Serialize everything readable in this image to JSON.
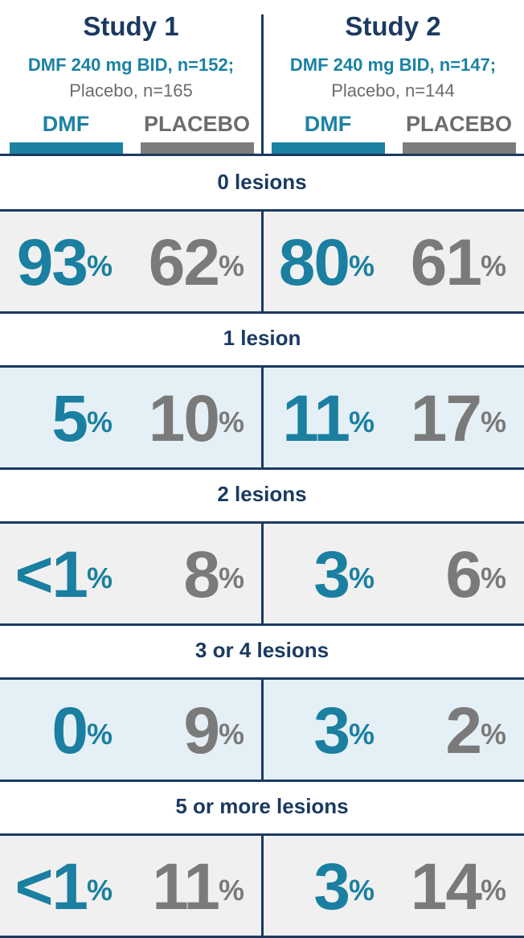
{
  "studies": [
    {
      "title": "Study 1",
      "dose": "DMF 240 mg BID, n=152;",
      "placebo": "Placebo, n=165"
    },
    {
      "title": "Study 2",
      "dose": "DMF 240 mg BID, n=147;",
      "placebo": "Placebo, n=144"
    }
  ],
  "groups": {
    "dmf": "DMF",
    "placebo": "PLACEBO"
  },
  "colors": {
    "dmf": "#1a7fa0",
    "placebo": "#7a7a7a",
    "navy": "#1b3a60",
    "band_gray": "#f0f0f0",
    "band_blue": "#e4f0f6"
  },
  "chart_data": {
    "type": "table",
    "columns": [
      "Study 1 DMF",
      "Study 1 Placebo",
      "Study 2 DMF",
      "Study 2 Placebo"
    ],
    "rows": [
      {
        "label": "0 lesions",
        "values": [
          "93",
          "62",
          "80",
          "61"
        ]
      },
      {
        "label": "1 lesion",
        "values": [
          "5",
          "10",
          "11",
          "17"
        ]
      },
      {
        "label": "2 lesions",
        "values": [
          "<1",
          "8",
          "3",
          "6"
        ]
      },
      {
        "label": "3 or 4 lesions",
        "values": [
          "0",
          "9",
          "3",
          "2"
        ]
      },
      {
        "label": "5 or more lesions",
        "values": [
          "<1",
          "11",
          "3",
          "14"
        ]
      }
    ],
    "unit": "%"
  }
}
